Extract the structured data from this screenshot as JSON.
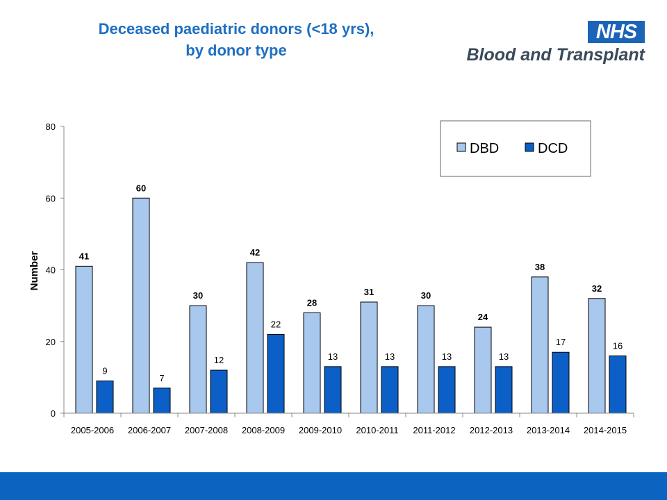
{
  "header": {
    "title_line1": "Deceased paediatric donors (<18 yrs),",
    "title_line2": "by donor type"
  },
  "logo": {
    "badge": "NHS",
    "text": "Blood and Transplant"
  },
  "colors": {
    "title": "#1f6fc2",
    "dbd": "#a9c8ee",
    "dcd": "#0c5fc6",
    "footer": "#0c64c0"
  },
  "chart_data": {
    "type": "bar",
    "ylabel": "Number",
    "ylim": [
      0,
      80
    ],
    "yticks": [
      0,
      20,
      40,
      60,
      80
    ],
    "legend_position": "top-right",
    "categories": [
      "2005-2006",
      "2006-2007",
      "2007-2008",
      "2008-2009",
      "2009-2010",
      "2010-2011",
      "2011-2012",
      "2012-2013",
      "2013-2014",
      "2014-2015"
    ],
    "series": [
      {
        "name": "DBD",
        "values": [
          41,
          60,
          30,
          42,
          28,
          31,
          30,
          24,
          38,
          32
        ]
      },
      {
        "name": "DCD",
        "values": [
          9,
          7,
          12,
          22,
          13,
          13,
          13,
          13,
          17,
          16
        ]
      }
    ]
  }
}
